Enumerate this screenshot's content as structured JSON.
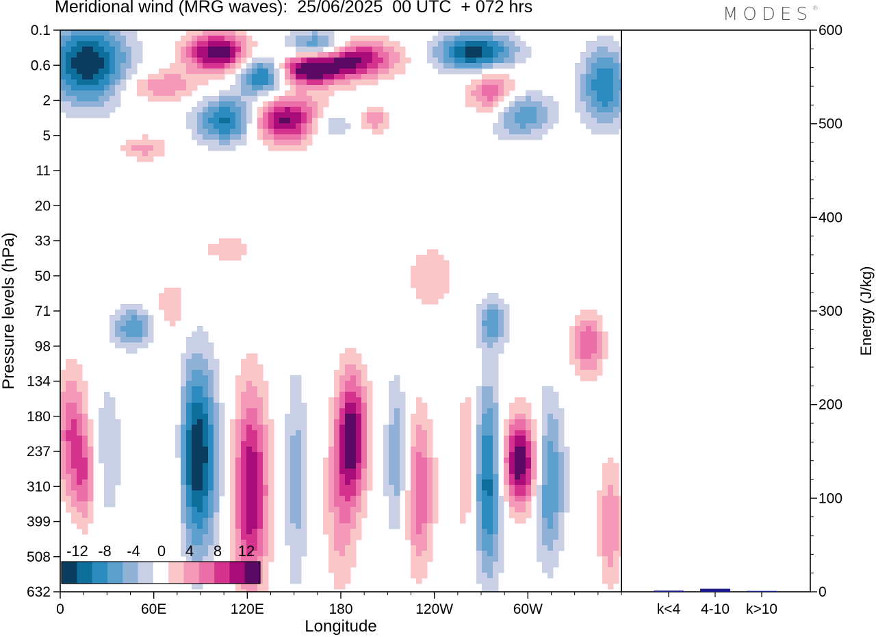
{
  "chart_data": [
    {
      "type": "heatmap",
      "title": "Meridional wind (MRG waves):  25/06/2025  00 UTC  + 072 hrs",
      "xlabel": "Longitude",
      "ylabel": "Pressure levels (hPa)",
      "x_ticks": [
        "0",
        "60E",
        "120E",
        "180",
        "120W",
        "60W"
      ],
      "x_tick_degrees": [
        0,
        60,
        120,
        180,
        240,
        300
      ],
      "xlim": [
        0,
        360
      ],
      "y_ticks": [
        "0.1",
        "0.6",
        "2",
        "5",
        "11",
        "20",
        "33",
        "50",
        "71",
        "98",
        "134",
        "180",
        "237",
        "310",
        "399",
        "508",
        "632"
      ],
      "colorbar": {
        "labels": [
          "-12",
          "-8",
          "-4",
          "0",
          "4",
          "8",
          "12"
        ],
        "levels": [
          -14,
          -12,
          -10,
          -8,
          -6,
          -4,
          -2,
          2,
          4,
          6,
          8,
          10,
          12,
          14
        ],
        "colors": [
          "#0a3d5e",
          "#0e6f9c",
          "#2c8cc0",
          "#5d9fcc",
          "#90b2d6",
          "#c9cfe4",
          "#ffffff",
          "#fbc6c8",
          "#f599b9",
          "#ec6fa8",
          "#d6338f",
          "#a70c78",
          "#5a0a62"
        ]
      },
      "features": [
        {
          "name": "upper-level positive maxima",
          "lon": [
            100,
            150,
            195,
            242
          ],
          "levels_hPa": [
            0.3,
            1.5,
            0.5,
            1.0
          ]
        },
        {
          "name": "upper-level negative minima",
          "lon": [
            10,
            100,
            135,
            265
          ],
          "levels_hPa": [
            0.4,
            1.5,
            0.3,
            0.3
          ]
        },
        {
          "name": "lower-level negative columns",
          "lon": [
            90,
            145,
            230,
            285,
            320
          ],
          "center_hPa": [
            240,
            320,
            300,
            260,
            280
          ]
        },
        {
          "name": "lower-level positive columns",
          "lon": [
            10,
            120,
            190,
            290
          ],
          "center_hPa": [
            220,
            300,
            190,
            230
          ]
        }
      ]
    },
    {
      "type": "bar",
      "categories": [
        "k<4",
        "4-10",
        "k>10"
      ],
      "values": [
        0.5,
        2.5,
        0.2
      ],
      "ylabel": "Energy (J/kg)",
      "ylim": [
        0,
        600
      ],
      "y_ticks": [
        "0",
        "100",
        "200",
        "300",
        "400",
        "500",
        "600"
      ],
      "bar_color": "#1d1a8c"
    }
  ],
  "brand": {
    "name": "MODES",
    "mark": "®"
  }
}
